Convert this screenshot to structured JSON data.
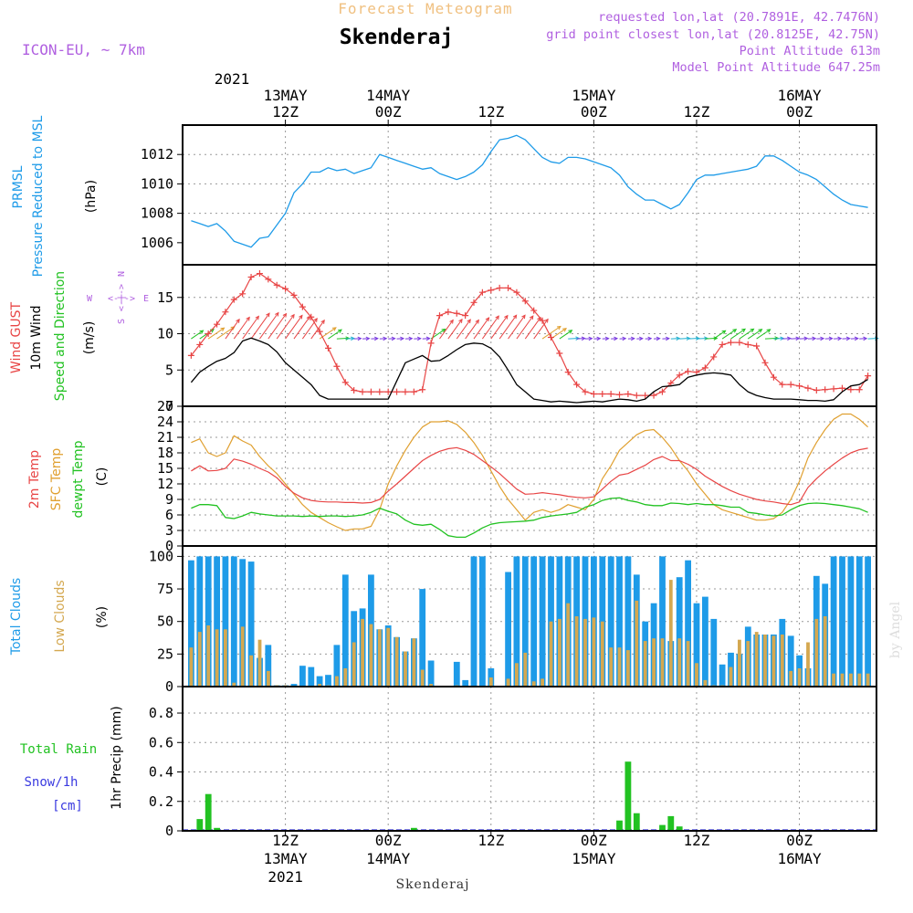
{
  "header": {
    "title": "Forecast Meteogram",
    "location": "Skenderaj",
    "model": "ICON-EU, ~ 7km",
    "requested": "requested lon,lat (20.7891E, 42.7476N)",
    "gridpoint": "grid point closest lon,lat (20.8125E, 42.75N)",
    "point_alt": "Point Altitude 613m",
    "model_alt": "Model Point Altitude 647.25m",
    "footer": "Skenderaj",
    "credit": "by Angel"
  },
  "time_axis": {
    "top_year": "2021",
    "ticks": [
      {
        "t": 12,
        "top1": "13MAY",
        "top2": "12Z",
        "bot1": "12Z",
        "bot2": "13MAY",
        "bot3": "2021"
      },
      {
        "t": 24,
        "top1": "14MAY",
        "top2": "00Z",
        "bot1": "00Z",
        "bot2": "14MAY",
        "bot3": ""
      },
      {
        "t": 36,
        "top1": "",
        "top2": "12Z",
        "bot1": "12Z",
        "bot2": "",
        "bot3": ""
      },
      {
        "t": 48,
        "top1": "15MAY",
        "top2": "00Z",
        "bot1": "00Z",
        "bot2": "15MAY",
        "bot3": ""
      },
      {
        "t": 60,
        "top1": "",
        "top2": "12Z",
        "bot1": "12Z",
        "bot2": "",
        "bot3": ""
      },
      {
        "t": 72,
        "top1": "16MAY",
        "top2": "00Z",
        "bot1": "00Z",
        "bot2": "16MAY",
        "bot3": ""
      }
    ]
  },
  "panel_labels": {
    "pressure": [
      "PRMSL",
      "Pressure Reduced to MSL",
      "(hPa)"
    ],
    "wind": [
      "Wind GUST",
      "10m Wind",
      "Speed and Direction",
      "(m/s)"
    ],
    "temp": [
      "2m Temp",
      "SFC Temp",
      "dewpt Temp",
      "(C)"
    ],
    "clouds": [
      "Total Clouds",
      "Low Clouds",
      "(%)"
    ],
    "precip": [
      "Total Rain",
      "Snow/1h",
      "[cm]",
      "1hr Precip (mm)"
    ],
    "compass": {
      "n": "N",
      "s": "S",
      "w": "W",
      "e": "E",
      "mid": "<-|->"
    }
  },
  "colors": {
    "pressure": "#1e9be8",
    "gust": "#e84545",
    "wind": "#000000",
    "t2m": "#e84545",
    "sfc": "#e0a030",
    "dewpt": "#22c222",
    "total_cloud": "#1e9be8",
    "low_cloud": "#d4a850",
    "rain": "#22c222",
    "snow": "#3a3ae0",
    "header": "#b060e0",
    "title": "#f0c080"
  },
  "chart_data": [
    {
      "type": "line",
      "name": "pressure",
      "ylabel": "hPa",
      "ylim": [
        1004.5,
        1014
      ],
      "yticks": [
        1006,
        1008,
        1010,
        1012
      ],
      "x": [
        1,
        2,
        3,
        4,
        5,
        6,
        7,
        8,
        9,
        10,
        11,
        12,
        13,
        14,
        15,
        16,
        17,
        18,
        19,
        20,
        21,
        22,
        23,
        24,
        25,
        26,
        27,
        28,
        29,
        30,
        31,
        32,
        33,
        34,
        35,
        36,
        37,
        38,
        39,
        40,
        41,
        42,
        43,
        44,
        45,
        46,
        47,
        48,
        49,
        50,
        51,
        52,
        53,
        54,
        55,
        56,
        57,
        58,
        59,
        60,
        61,
        62,
        63,
        64,
        65,
        66,
        67,
        68,
        69,
        70,
        71,
        72,
        73,
        74,
        75,
        76,
        77,
        78,
        79,
        80
      ],
      "values": [
        1007.5,
        1007.3,
        1007.1,
        1007.3,
        1006.8,
        1006.1,
        1005.9,
        1005.7,
        1006.3,
        1006.4,
        1007.2,
        1008.0,
        1009.4,
        1010.0,
        1010.8,
        1010.8,
        1011.1,
        1010.9,
        1011.0,
        1010.7,
        1010.9,
        1011.1,
        1012.0,
        1011.8,
        1011.6,
        1011.4,
        1011.2,
        1011.0,
        1011.1,
        1010.7,
        1010.5,
        1010.3,
        1010.5,
        1010.8,
        1011.3,
        1012.2,
        1013.0,
        1013.1,
        1013.3,
        1013.0,
        1012.4,
        1011.8,
        1011.5,
        1011.4,
        1011.8,
        1011.8,
        1011.7,
        1011.5,
        1011.3,
        1011.1,
        1010.6,
        1009.8,
        1009.3,
        1008.9,
        1008.9,
        1008.6,
        1008.3,
        1008.6,
        1009.4,
        1010.3,
        1010.6,
        1010.6,
        1010.7,
        1010.8,
        1010.9,
        1011.0,
        1011.2,
        1011.9,
        1011.9,
        1011.6,
        1011.2,
        1010.8,
        1010.6,
        1010.3,
        1009.8,
        1009.3,
        1008.9,
        1008.6,
        1008.5,
        1008.4
      ]
    },
    {
      "type": "line",
      "name": "wind",
      "ylabel": "m/s",
      "ylim": [
        0,
        19.5
      ],
      "yticks": [
        0,
        5,
        10,
        15
      ],
      "x": [
        1,
        2,
        3,
        4,
        5,
        6,
        7,
        8,
        9,
        10,
        11,
        12,
        13,
        14,
        15,
        16,
        17,
        18,
        19,
        20,
        21,
        22,
        23,
        24,
        25,
        26,
        27,
        28,
        29,
        30,
        31,
        32,
        33,
        34,
        35,
        36,
        37,
        38,
        39,
        40,
        41,
        42,
        43,
        44,
        45,
        46,
        47,
        48,
        49,
        50,
        51,
        52,
        53,
        54,
        55,
        56,
        57,
        58,
        59,
        60,
        61,
        62,
        63,
        64,
        65,
        66,
        67,
        68,
        69,
        70,
        71,
        72,
        73,
        74,
        75,
        76,
        77,
        78,
        79,
        80
      ],
      "gust": [
        7.0,
        8.5,
        10.0,
        11.3,
        13.0,
        14.7,
        15.5,
        17.8,
        18.3,
        17.5,
        16.7,
        16.2,
        15.3,
        13.7,
        12.3,
        10.3,
        8.0,
        5.5,
        3.3,
        2.2,
        2.0,
        2.0,
        2.0,
        2.0,
        2.0,
        2.0,
        2.0,
        2.3,
        8.7,
        12.5,
        13.0,
        12.8,
        12.5,
        14.3,
        15.7,
        16.0,
        16.3,
        16.3,
        15.7,
        14.5,
        13.2,
        11.8,
        9.5,
        7.3,
        4.7,
        3.0,
        2.0,
        1.7,
        1.7,
        1.7,
        1.6,
        1.7,
        1.5,
        1.5,
        1.5,
        2.0,
        3.2,
        4.3,
        4.8,
        4.7,
        5.3,
        6.8,
        8.5,
        8.8,
        8.8,
        8.5,
        8.3,
        6.0,
        4.0,
        3.0,
        3.0,
        2.8,
        2.5,
        2.2,
        2.3,
        2.4,
        2.5,
        2.3,
        2.3,
        4.2
      ],
      "speed": [
        3.3,
        4.7,
        5.5,
        6.2,
        6.6,
        7.4,
        9.0,
        9.4,
        9.0,
        8.5,
        7.5,
        6.0,
        5.0,
        4.0,
        3.0,
        1.5,
        1.0,
        1.0,
        1.0,
        1.0,
        1.0,
        1.0,
        1.0,
        1.0,
        3.5,
        6.0,
        6.5,
        7.0,
        6.2,
        6.3,
        7.0,
        7.8,
        8.5,
        8.7,
        8.6,
        8.0,
        6.8,
        5.0,
        3.0,
        2.0,
        1.0,
        0.8,
        0.6,
        0.7,
        0.6,
        0.5,
        0.6,
        0.7,
        0.6,
        0.8,
        1.0,
        0.9,
        0.7,
        1.0,
        2.0,
        2.7,
        2.8,
        3.0,
        4.0,
        4.3,
        4.5,
        4.6,
        4.5,
        4.3,
        3.0,
        2.0,
        1.5,
        1.2,
        1.0,
        1.0,
        1.0,
        0.9,
        0.8,
        0.8,
        0.7,
        0.9,
        2.0,
        2.8,
        3.0,
        3.7
      ]
    },
    {
      "type": "line",
      "name": "temperature",
      "ylabel": "C",
      "ylim": [
        0,
        27
      ],
      "yticks": [
        0,
        3,
        6,
        9,
        12,
        15,
        18,
        21,
        24,
        27
      ],
      "x": [
        1,
        2,
        3,
        4,
        5,
        6,
        7,
        8,
        9,
        10,
        11,
        12,
        13,
        14,
        15,
        16,
        17,
        18,
        19,
        20,
        21,
        22,
        23,
        24,
        25,
        26,
        27,
        28,
        29,
        30,
        31,
        32,
        33,
        34,
        35,
        36,
        37,
        38,
        39,
        40,
        41,
        42,
        43,
        44,
        45,
        46,
        47,
        48,
        49,
        50,
        51,
        52,
        53,
        54,
        55,
        56,
        57,
        58,
        59,
        60,
        61,
        62,
        63,
        64,
        65,
        66,
        67,
        68,
        69,
        70,
        71,
        72,
        73,
        74,
        75,
        76,
        77,
        78,
        79,
        80
      ],
      "t2m": [
        14.5,
        15.5,
        14.5,
        14.6,
        15.0,
        16.8,
        16.4,
        15.8,
        15.0,
        14.3,
        13.2,
        11.5,
        10.2,
        9.3,
        8.8,
        8.6,
        8.5,
        8.5,
        8.4,
        8.4,
        8.3,
        8.4,
        9.0,
        10.6,
        12.0,
        13.5,
        15.0,
        16.5,
        17.5,
        18.3,
        18.8,
        19.0,
        18.5,
        17.7,
        16.5,
        15.3,
        14.0,
        12.5,
        11.0,
        10.0,
        10.1,
        10.3,
        10.1,
        9.9,
        9.6,
        9.4,
        9.3,
        9.5,
        11.0,
        12.5,
        13.7,
        14.0,
        14.8,
        15.6,
        16.7,
        17.3,
        16.5,
        16.5,
        15.8,
        14.8,
        13.5,
        12.5,
        11.5,
        10.7,
        10.0,
        9.5,
        9.0,
        8.7,
        8.5,
        8.2,
        8.0,
        8.5,
        11.3,
        13.0,
        14.5,
        15.8,
        17.0,
        18.0,
        18.6,
        18.9
      ],
      "sfc": [
        20.0,
        20.7,
        18.0,
        17.3,
        18.0,
        21.3,
        20.3,
        19.5,
        17.3,
        15.5,
        14.0,
        12.0,
        10.0,
        8.0,
        6.5,
        5.5,
        4.5,
        3.7,
        3.0,
        3.3,
        3.3,
        3.8,
        7.0,
        12.0,
        15.5,
        18.5,
        21.0,
        23.0,
        24.0,
        24.0,
        24.2,
        23.5,
        22.0,
        20.0,
        17.5,
        14.5,
        11.5,
        9.0,
        7.0,
        5.0,
        6.5,
        7.0,
        6.5,
        7.0,
        8.0,
        7.5,
        7.0,
        9.0,
        13.0,
        15.5,
        18.5,
        20.0,
        21.5,
        22.3,
        22.5,
        21.0,
        19.0,
        16.5,
        14.5,
        12.0,
        10.0,
        8.0,
        7.0,
        6.5,
        6.0,
        5.5,
        5.0,
        5.0,
        5.3,
        6.5,
        9.0,
        12.5,
        17.0,
        20.0,
        22.5,
        24.5,
        25.5,
        25.5,
        24.5,
        23.0
      ],
      "dewpt": [
        7.3,
        8.0,
        8.0,
        7.8,
        5.5,
        5.3,
        5.8,
        6.5,
        6.2,
        6.0,
        5.8,
        5.8,
        5.8,
        5.7,
        5.8,
        5.7,
        5.8,
        5.8,
        5.7,
        5.8,
        6.0,
        6.5,
        7.3,
        6.7,
        6.2,
        5.0,
        4.2,
        4.0,
        4.2,
        3.2,
        2.0,
        1.7,
        1.7,
        2.5,
        3.5,
        4.2,
        4.5,
        4.6,
        4.7,
        4.8,
        5.0,
        5.5,
        5.8,
        6.0,
        6.2,
        6.5,
        7.5,
        8.0,
        8.8,
        9.2,
        9.3,
        8.8,
        8.5,
        8.0,
        7.8,
        7.8,
        8.3,
        8.2,
        8.0,
        8.2,
        8.0,
        8.0,
        7.8,
        7.5,
        7.5,
        6.5,
        6.3,
        6.0,
        5.8,
        6.0,
        7.0,
        7.8,
        8.2,
        8.3,
        8.2,
        8.0,
        7.8,
        7.5,
        7.2,
        6.5
      ]
    },
    {
      "type": "bar",
      "name": "clouds",
      "ylabel": "%",
      "ylim": [
        0,
        108
      ],
      "yticks": [
        0,
        25,
        50,
        75,
        100
      ],
      "x": [
        1,
        2,
        3,
        4,
        5,
        6,
        7,
        8,
        9,
        10,
        11,
        12,
        13,
        14,
        15,
        16,
        17,
        18,
        19,
        20,
        21,
        22,
        23,
        24,
        25,
        26,
        27,
        28,
        29,
        30,
        31,
        32,
        33,
        34,
        35,
        36,
        37,
        38,
        39,
        40,
        41,
        42,
        43,
        44,
        45,
        46,
        47,
        48,
        49,
        50,
        51,
        52,
        53,
        54,
        55,
        56,
        57,
        58,
        59,
        60,
        61,
        62,
        63,
        64,
        65,
        66,
        67,
        68,
        69,
        70,
        71,
        72,
        73,
        74,
        75,
        76,
        77,
        78,
        79,
        80
      ],
      "total": [
        97,
        100,
        100,
        100,
        100,
        100,
        98,
        96,
        22,
        32,
        1,
        1,
        2,
        16,
        15,
        8,
        9,
        32,
        86,
        58,
        60,
        86,
        44,
        47,
        38,
        27,
        37,
        75,
        20,
        0,
        0,
        19,
        5,
        100,
        100,
        14,
        0,
        88,
        100,
        100,
        100,
        100,
        100,
        100,
        100,
        100,
        100,
        100,
        100,
        100,
        100,
        100,
        86,
        50,
        64,
        100,
        35,
        84,
        97,
        64,
        69,
        52,
        17,
        26,
        25,
        46,
        40,
        40,
        40,
        52,
        39,
        24,
        14,
        85,
        79,
        100,
        100,
        100,
        100,
        100
      ],
      "low": [
        30,
        42,
        47,
        44,
        44,
        3,
        46,
        24,
        36,
        12,
        1,
        1,
        0,
        0,
        0,
        2,
        1,
        8,
        14,
        34,
        52,
        48,
        44,
        45,
        38,
        27,
        37,
        13,
        2,
        0,
        0,
        1,
        0,
        0,
        0,
        7,
        0,
        6,
        18,
        26,
        4,
        6,
        50,
        52,
        64,
        54,
        52,
        53,
        50,
        30,
        30,
        28,
        66,
        35,
        37,
        37,
        82,
        37,
        35,
        18,
        5,
        1,
        1,
        15,
        36,
        35,
        42,
        40,
        39,
        40,
        12,
        14,
        34,
        52,
        54,
        10,
        10,
        10,
        10,
        10
      ]
    },
    {
      "type": "bar",
      "name": "precip",
      "ylabel": "mm",
      "ylim": [
        0,
        0.98
      ],
      "yticks": [
        0,
        0.2,
        0.4,
        0.6,
        0.8
      ],
      "x": [
        1,
        2,
        3,
        4,
        5,
        6,
        7,
        8,
        9,
        10,
        11,
        12,
        13,
        14,
        15,
        16,
        17,
        18,
        19,
        20,
        21,
        22,
        23,
        24,
        25,
        26,
        27,
        28,
        29,
        30,
        31,
        32,
        33,
        34,
        35,
        36,
        37,
        38,
        39,
        40,
        41,
        42,
        43,
        44,
        45,
        46,
        47,
        48,
        49,
        50,
        51,
        52,
        53,
        54,
        55,
        56,
        57,
        58,
        59,
        60,
        61,
        62,
        63,
        64,
        65,
        66,
        67,
        68,
        69,
        70,
        71,
        72,
        73,
        74,
        75,
        76,
        77,
        78,
        79,
        80
      ],
      "rain": [
        0,
        0.08,
        0.25,
        0.02,
        0,
        0,
        0,
        0,
        0,
        0,
        0,
        0,
        0,
        0,
        0,
        0,
        0,
        0,
        0,
        0,
        0,
        0,
        0,
        0,
        0,
        0,
        0.02,
        0,
        0,
        0,
        0,
        0,
        0,
        0,
        0,
        0,
        0,
        0,
        0,
        0,
        0,
        0,
        0,
        0,
        0,
        0,
        0,
        0,
        0,
        0,
        0.07,
        0.47,
        0.12,
        0,
        0,
        0.04,
        0.1,
        0.03,
        0,
        0,
        0,
        0,
        0,
        0,
        0,
        0,
        0,
        0,
        0,
        0,
        0,
        0,
        0,
        0,
        0,
        0,
        0,
        0,
        0,
        0
      ]
    }
  ]
}
